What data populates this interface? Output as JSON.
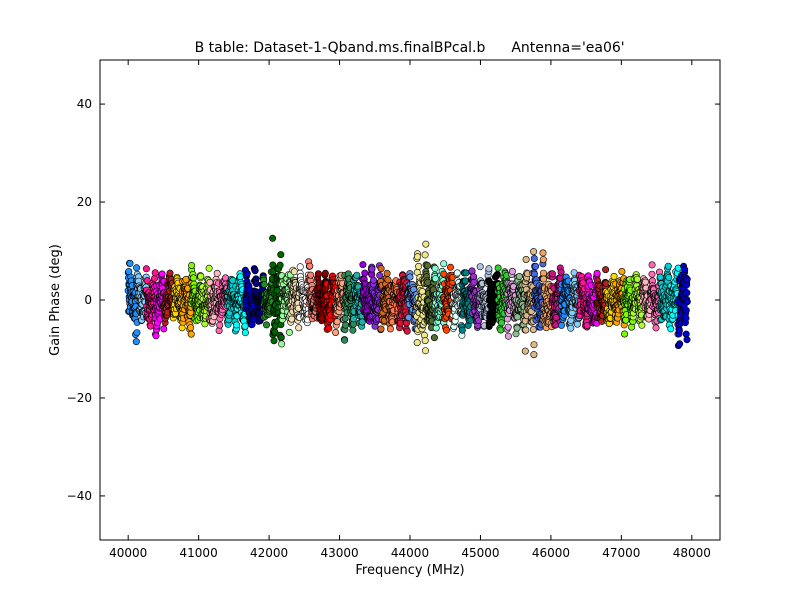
{
  "chart_data": {
    "type": "scatter",
    "title": "B table: Dataset-1-Qband.ms.finalBPcal.b",
    "subtitle": "Antenna='ea06'",
    "xlabel": "Frequency (MHz)",
    "ylabel": "Gain Phase (deg)",
    "xlim": [
      39600,
      48400
    ],
    "ylim": [
      -49,
      49
    ],
    "x_ticks": [
      40000,
      41000,
      42000,
      43000,
      44000,
      45000,
      46000,
      47000,
      48000
    ],
    "y_ticks": [
      40,
      20,
      0,
      -20,
      -40
    ],
    "x_tick_labels": [
      "40000",
      "41000",
      "42000",
      "43000",
      "44000",
      "45000",
      "46000",
      "47000",
      "48000"
    ],
    "y_tick_labels": [
      "40",
      "20",
      "0",
      "−20",
      "−40"
    ],
    "grid": false,
    "legend": "none",
    "spw_width_mhz": 128,
    "spw_count": 62,
    "points_per_spw": 64,
    "series_colors": [
      "#1e90ff",
      "#87cefa",
      "#ff1493",
      "#ff00ff",
      "#b22222",
      "#ffd700",
      "#ffa500",
      "#7cfc00",
      "#adff2f",
      "#ffb6c1",
      "#ff69b4",
      "#00ced1",
      "#00ffff",
      "#0000cd",
      "#000080",
      "#228b22",
      "#006400",
      "#98fb98",
      "#f5deb3",
      "#ffffff",
      "#fa8072",
      "#8b0000",
      "#ff0000",
      "#ffa07a",
      "#2e8b57",
      "#20b2aa",
      "#9400d3",
      "#8a2be2",
      "#d2691e",
      "#ff7f50",
      "#dc143c",
      "#6495ed",
      "#f0e68c",
      "#556b2f",
      "#7fffd4",
      "#ff4500",
      "#e0ffff",
      "#008080",
      "#9932cc",
      "#b0c4de",
      "#000000",
      "#32cd32",
      "#dda0dd",
      "#8fbc8f",
      "#deb887",
      "#4169e1",
      "#f4a460",
      "#c71585"
    ],
    "spw_amplitudes": [
      18,
      6,
      8,
      12,
      5,
      6,
      7,
      6,
      7,
      5,
      6,
      6,
      6,
      7,
      6,
      6,
      24,
      12,
      10,
      10,
      9,
      8,
      7,
      8,
      10,
      7,
      8,
      9,
      12,
      10,
      10,
      8,
      24,
      16,
      12,
      14,
      9,
      9,
      9,
      10,
      10,
      12,
      12,
      11,
      20,
      15,
      14,
      10,
      8,
      7,
      8,
      9,
      8,
      7,
      8,
      7,
      8,
      6,
      7,
      10,
      11,
      18
    ]
  }
}
